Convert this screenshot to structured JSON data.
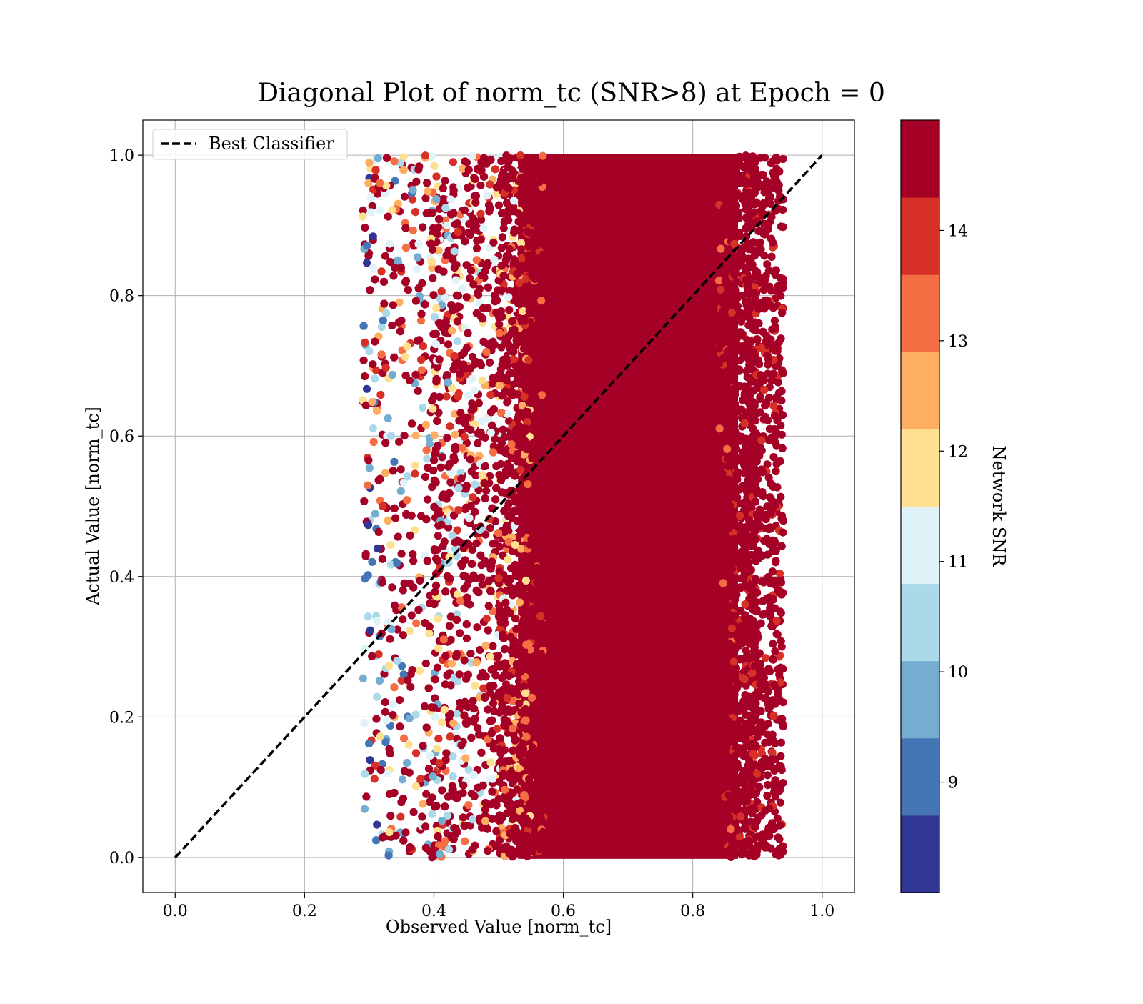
{
  "chart_data": {
    "type": "scatter",
    "title": "Diagonal Plot of norm_tc (SNR>8) at Epoch = 0",
    "xlabel": "Observed Value [norm_tc]",
    "ylabel": "Actual Value [norm_tc]",
    "xlim": [
      -0.05,
      1.05
    ],
    "ylim": [
      -0.05,
      1.05
    ],
    "xticks": [
      "0.0",
      "0.2",
      "0.4",
      "0.6",
      "0.8",
      "1.0"
    ],
    "xtick_values": [
      0.0,
      0.2,
      0.4,
      0.6,
      0.8,
      1.0
    ],
    "yticks": [
      "0.0",
      "0.2",
      "0.4",
      "0.6",
      "0.8",
      "1.0"
    ],
    "ytick_values": [
      0.0,
      0.2,
      0.4,
      0.6,
      0.8,
      1.0
    ],
    "grid": true,
    "legend": {
      "placement": "upper-left",
      "entries": [
        {
          "label": "Best Classifier",
          "style": "dashed",
          "color": "#000000"
        }
      ]
    },
    "reference_line": {
      "name": "Best Classifier",
      "x": [
        0.0,
        1.0
      ],
      "y": [
        0.0,
        1.0
      ]
    },
    "scatter_cloud": {
      "x_range": [
        0.26,
        0.94
      ],
      "y_range": [
        0.0,
        1.0
      ],
      "dense_x_range": [
        0.53,
        0.87
      ],
      "description_values": {
        "snr_min": 8,
        "snr_max": 15
      }
    },
    "colorbar": {
      "label": "Network SNR",
      "range": [
        8,
        15
      ],
      "ticks": [
        "9",
        "10",
        "11",
        "12",
        "13",
        "14"
      ],
      "tick_values": [
        9,
        10,
        11,
        12,
        13,
        14
      ],
      "colors": [
        "#313695",
        "#4575b4",
        "#74add1",
        "#abd9e9",
        "#e0f3f8",
        "#fee090",
        "#fdae61",
        "#f46d43",
        "#d73027",
        "#a50026"
      ]
    },
    "colors": {
      "dense": "#a50026",
      "grid": "#b0b0b0"
    }
  }
}
